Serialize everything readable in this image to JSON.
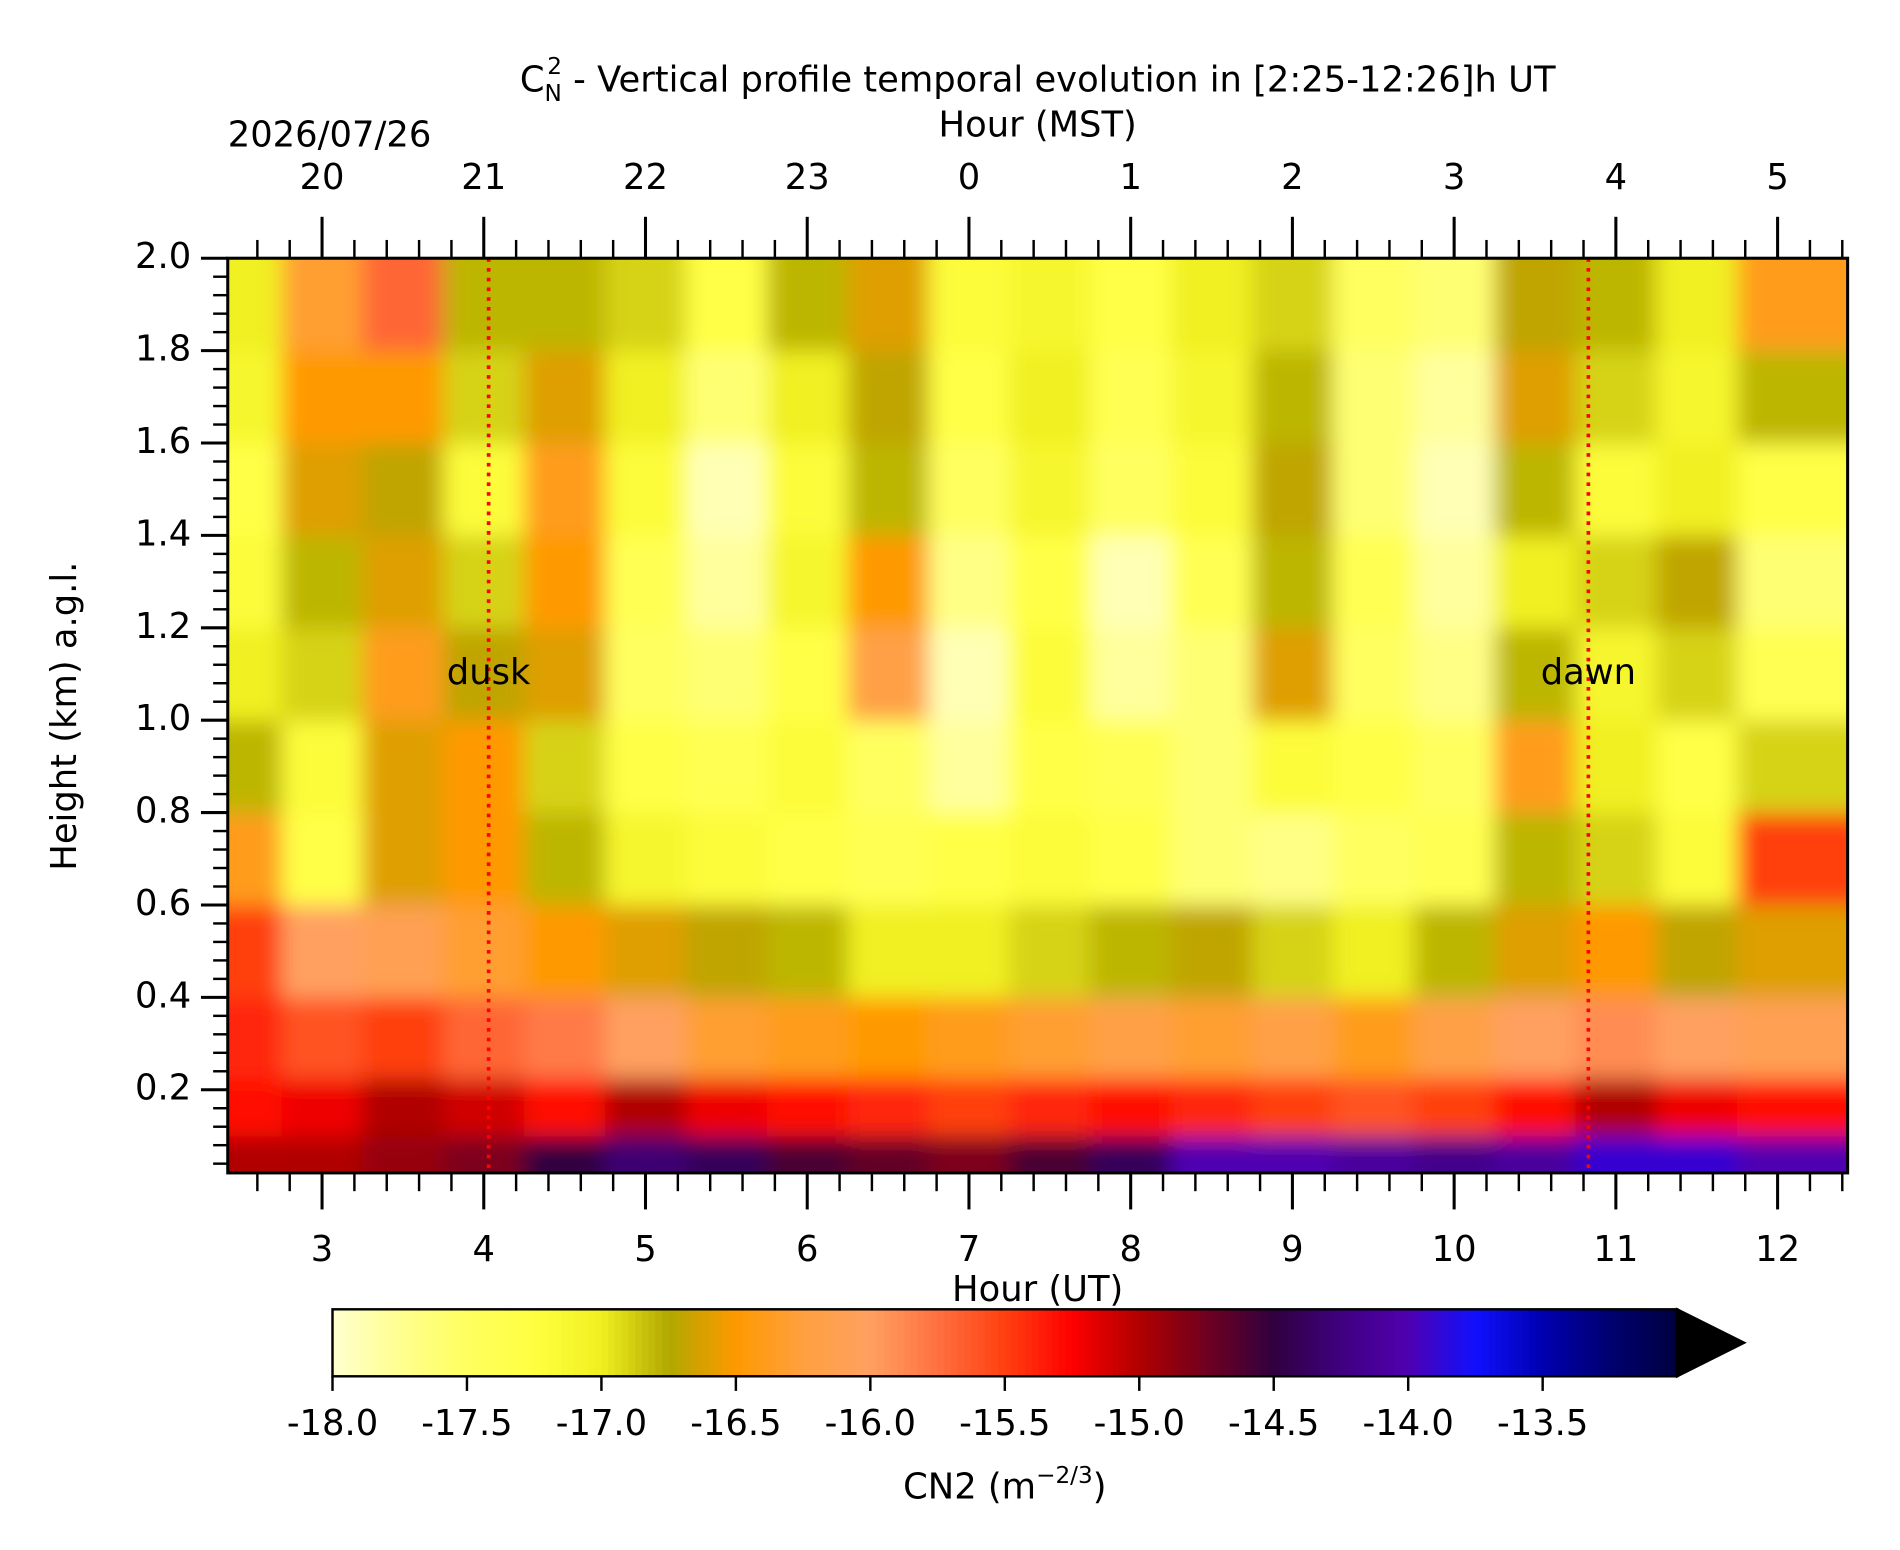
{
  "chart_data": {
    "type": "heatmap",
    "title": {
      "base": "C",
      "subscript": "N",
      "superscript": "2",
      "text": " - Vertical profile temporal evolution in [2:25-12:26]h UT"
    },
    "date": "2026/07/26",
    "xlabel": "Hour (UT)",
    "top_xlabel": "Hour (MST)",
    "ylabel": "Height (km) a.g.l.",
    "xlim": [
      2.417,
      12.433
    ],
    "xticks": [
      3,
      4,
      5,
      6,
      7,
      8,
      9,
      10,
      11,
      12
    ],
    "top_xticks": [
      {
        "value": 3,
        "label": "20"
      },
      {
        "value": 4,
        "label": "21"
      },
      {
        "value": 5,
        "label": "22"
      },
      {
        "value": 6,
        "label": "23"
      },
      {
        "value": 7,
        "label": "0"
      },
      {
        "value": 8,
        "label": "1"
      },
      {
        "value": 9,
        "label": "2"
      },
      {
        "value": 10,
        "label": "3"
      },
      {
        "value": 11,
        "label": "4"
      },
      {
        "value": 12,
        "label": "5"
      }
    ],
    "ylim": [
      0.02,
      2.0
    ],
    "yticks": [
      {
        "value": 0.2,
        "label": "0.2"
      },
      {
        "value": 0.4,
        "label": "0.4"
      },
      {
        "value": 0.6,
        "label": "0.6"
      },
      {
        "value": 0.8,
        "label": "0.8"
      },
      {
        "value": 1.0,
        "label": "1.0"
      },
      {
        "value": 1.2,
        "label": "1.2"
      },
      {
        "value": 1.4,
        "label": "1.4"
      },
      {
        "value": 1.6,
        "label": "1.6"
      },
      {
        "value": 1.8,
        "label": "1.8"
      },
      {
        "value": 2.0,
        "label": "2.0"
      }
    ],
    "x": [
      2.5,
      3,
      3.5,
      4,
      4.5,
      5,
      5.5,
      6,
      6.5,
      7,
      7.5,
      8,
      8.5,
      9,
      9.5,
      10,
      10.5,
      11,
      11.5,
      12
    ],
    "y": [
      0.05,
      0.15,
      0.3,
      0.5,
      0.7,
      0.9,
      1.1,
      1.3,
      1.5,
      1.7,
      1.9
    ],
    "z": [
      [
        -15.0,
        -15.0,
        -14.9,
        -14.8,
        -14.5,
        -14.3,
        -14.4,
        -14.6,
        -14.7,
        -14.8,
        -14.6,
        -14.4,
        -14.0,
        -14.0,
        -14.1,
        -14.2,
        -14.1,
        -13.9,
        -13.9,
        -14.0
      ],
      [
        -15.3,
        -15.2,
        -15.0,
        -15.1,
        -15.3,
        -15.0,
        -15.2,
        -15.3,
        -15.4,
        -15.5,
        -15.4,
        -15.3,
        -15.4,
        -15.5,
        -15.6,
        -15.5,
        -15.3,
        -15.0,
        -15.2,
        -15.3
      ],
      [
        -15.4,
        -15.6,
        -15.5,
        -15.7,
        -15.8,
        -16.0,
        -16.3,
        -16.4,
        -16.5,
        -16.4,
        -16.3,
        -16.2,
        -16.3,
        -16.2,
        -16.4,
        -16.2,
        -16.0,
        -15.9,
        -16.0,
        -16.1
      ],
      [
        -15.5,
        -16.0,
        -16.1,
        -16.3,
        -16.5,
        -16.6,
        -16.7,
        -16.8,
        -17.0,
        -17.0,
        -16.9,
        -16.8,
        -16.7,
        -16.9,
        -17.0,
        -16.8,
        -16.6,
        -16.5,
        -16.7,
        -16.6
      ],
      [
        -16.4,
        -17.3,
        -16.6,
        -16.5,
        -16.8,
        -17.1,
        -17.2,
        -17.3,
        -17.4,
        -17.3,
        -17.2,
        -17.3,
        -17.6,
        -17.7,
        -17.5,
        -17.4,
        -16.8,
        -16.9,
        -17.2,
        -15.5
      ],
      [
        -16.8,
        -17.2,
        -16.6,
        -16.5,
        -16.9,
        -17.3,
        -17.4,
        -17.2,
        -17.5,
        -17.8,
        -17.3,
        -17.4,
        -17.6,
        -17.2,
        -17.3,
        -17.5,
        -16.4,
        -17.0,
        -17.3,
        -16.9
      ],
      [
        -17.0,
        -16.9,
        -16.4,
        -16.7,
        -16.6,
        -17.5,
        -17.6,
        -17.3,
        -16.2,
        -17.9,
        -17.2,
        -17.8,
        -17.6,
        -16.6,
        -17.5,
        -17.7,
        -16.8,
        -17.1,
        -16.9,
        -17.4
      ],
      [
        -17.2,
        -16.8,
        -16.6,
        -16.9,
        -16.5,
        -17.4,
        -17.8,
        -17.1,
        -16.5,
        -17.7,
        -17.3,
        -17.9,
        -17.4,
        -16.8,
        -17.4,
        -17.8,
        -17.0,
        -16.9,
        -16.7,
        -17.6
      ],
      [
        -17.3,
        -16.6,
        -16.7,
        -17.2,
        -16.4,
        -17.2,
        -17.9,
        -17.2,
        -16.8,
        -17.5,
        -17.1,
        -17.5,
        -17.2,
        -16.7,
        -17.6,
        -17.9,
        -16.8,
        -17.2,
        -17.0,
        -17.3
      ],
      [
        -17.1,
        -16.5,
        -16.5,
        -16.9,
        -16.6,
        -17.0,
        -17.6,
        -17.0,
        -16.7,
        -17.3,
        -17.0,
        -17.4,
        -17.1,
        -16.8,
        -17.6,
        -17.8,
        -16.6,
        -16.9,
        -17.1,
        -16.8
      ],
      [
        -17.0,
        -16.3,
        -15.7,
        -16.8,
        -16.8,
        -16.9,
        -17.3,
        -16.8,
        -16.6,
        -17.2,
        -17.1,
        -17.3,
        -17.0,
        -16.9,
        -17.5,
        -17.6,
        -16.7,
        -16.8,
        -17.0,
        -16.4
      ]
    ],
    "annotations": [
      {
        "text": "dusk",
        "x": 4.03,
        "y": 1.1,
        "color": "#ff0000"
      },
      {
        "text": "dawn",
        "x": 10.83,
        "y": 1.1,
        "color": "#ff0000"
      }
    ],
    "colorbar": {
      "lim": [
        -18.0,
        -13.0
      ],
      "ticks": [
        {
          "value": -18.0,
          "label": "-18.0"
        },
        {
          "value": -17.5,
          "label": "-17.5"
        },
        {
          "value": -17.0,
          "label": "-17.0"
        },
        {
          "value": -16.5,
          "label": "-16.5"
        },
        {
          "value": -16.0,
          "label": "-16.0"
        },
        {
          "value": -15.5,
          "label": "-15.5"
        },
        {
          "value": -15.0,
          "label": "-15.0"
        },
        {
          "value": -14.5,
          "label": "-14.5"
        },
        {
          "value": -14.0,
          "label": "-14.0"
        },
        {
          "value": -13.5,
          "label": "-13.5"
        }
      ],
      "colors": [
        "#ffffd0",
        "#ffff90",
        "#ffff60",
        "#ffff40",
        "#f0f020",
        "#b0a800",
        "#ff9900",
        "#ffa040",
        "#ffa060",
        "#ff7040",
        "#ff4010",
        "#ff0000",
        "#b00000",
        "#700020",
        "#300040",
        "#400080",
        "#5000b0",
        "#1010ff",
        "#0000b0",
        "#000070",
        "#000040"
      ],
      "extend": "max",
      "extend_color": "#000000",
      "label": {
        "text": "CN2 (m",
        "superscript": "−2/3",
        "close": ")"
      }
    }
  }
}
